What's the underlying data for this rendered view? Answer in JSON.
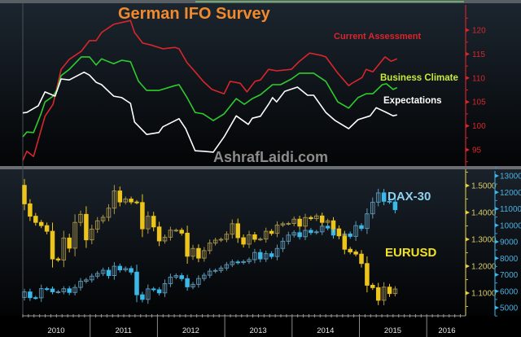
{
  "colors": {
    "title": "#f28a2c",
    "current_assessment": "#d8262c",
    "business_climate": "#2ecc2e",
    "business_climate_label": "#c8ea3c",
    "expectations": "#ffffff",
    "watermark": "#8c8c8c",
    "dax": "#3ab8ea",
    "dax_label": "#8fd0ee",
    "eurusd": "#ecc41c",
    "eurusd_label": "#f2e41a"
  },
  "chart_data": [
    {
      "type": "line",
      "title": "German IFO Survey",
      "watermark": "AshrafLaidi.com",
      "ylim": [
        90,
        125
      ],
      "yticks": [
        95,
        100,
        105,
        110,
        115,
        120
      ],
      "axis_side": "right",
      "series": [
        {
          "name": "Current Assessment",
          "x": [
            2010.0,
            2010.06,
            2010.16,
            2010.33,
            2010.45,
            2010.57,
            2010.69,
            2010.87,
            2010.99,
            2011.09,
            2011.17,
            2011.35,
            2011.6,
            2011.66,
            2011.78,
            2011.9,
            2012.08,
            2012.26,
            2012.32,
            2012.44,
            2012.56,
            2012.68,
            2012.81,
            2012.99,
            2013.08,
            2013.23,
            2013.33,
            2013.45,
            2013.53,
            2013.65,
            2013.77,
            2013.99,
            2014.11,
            2014.26,
            2014.44,
            2014.5,
            2014.68,
            2014.84,
            2014.89,
            2015.04,
            2015.1,
            2015.2,
            2015.38,
            2015.47,
            2015.56
          ],
          "y": [
            92.8,
            94.7,
            93.6,
            102.0,
            104.5,
            111.8,
            113.9,
            115.6,
            117.8,
            117.8,
            119.5,
            121.2,
            122.0,
            119.5,
            117.3,
            116.9,
            116.1,
            116.4,
            116.1,
            113.2,
            111.3,
            109.3,
            107.6,
            106.7,
            109.3,
            108.9,
            107.1,
            109.3,
            109.6,
            111.8,
            111.5,
            111.8,
            113.5,
            115.2,
            114.7,
            114.4,
            111.0,
            108.4,
            108.9,
            110.1,
            111.8,
            111.3,
            114.4,
            113.5,
            114.0
          ]
        },
        {
          "name": "Business Climate",
          "x": [
            2010.0,
            2010.06,
            2010.16,
            2010.27,
            2010.33,
            2010.45,
            2010.51,
            2010.57,
            2010.69,
            2010.87,
            2010.99,
            2011.09,
            2011.17,
            2011.35,
            2011.47,
            2011.6,
            2011.72,
            2011.84,
            2012.02,
            2012.26,
            2012.32,
            2012.44,
            2012.56,
            2012.68,
            2012.83,
            2012.99,
            2013.17,
            2013.29,
            2013.41,
            2013.53,
            2013.71,
            2013.83,
            2013.99,
            2014.11,
            2014.32,
            2014.5,
            2014.68,
            2014.84,
            2014.98,
            2015.1,
            2015.2,
            2015.34,
            2015.4,
            2015.5,
            2015.56
          ],
          "y": [
            97.7,
            98.7,
            98.6,
            102.5,
            105.0,
            106.2,
            107.6,
            110.5,
            111.8,
            114.4,
            114.4,
            112.7,
            114.0,
            113.0,
            113.7,
            113.4,
            109.3,
            107.4,
            107.4,
            108.4,
            108.6,
            105.9,
            102.8,
            102.5,
            101.1,
            102.5,
            105.7,
            104.5,
            105.7,
            106.5,
            108.6,
            108.6,
            109.8,
            111.0,
            111.0,
            109.3,
            105.0,
            103.7,
            105.9,
            106.7,
            106.7,
            108.6,
            108.8,
            107.6,
            108.0
          ]
        },
        {
          "name": "Expectations",
          "x": [
            2010.0,
            2010.06,
            2010.23,
            2010.33,
            2010.48,
            2010.57,
            2010.69,
            2010.91,
            2010.99,
            2011.09,
            2011.17,
            2011.35,
            2011.47,
            2011.6,
            2011.66,
            2011.84,
            2012.02,
            2012.08,
            2012.32,
            2012.42,
            2012.56,
            2012.68,
            2012.83,
            2012.99,
            2013.17,
            2013.35,
            2013.41,
            2013.53,
            2013.65,
            2013.71,
            2013.77,
            2013.89,
            2014.08,
            2014.23,
            2014.32,
            2014.5,
            2014.64,
            2014.84,
            2014.98,
            2015.16,
            2015.25,
            2015.4,
            2015.5,
            2015.56
          ],
          "y": [
            102.7,
            102.8,
            104.2,
            107.1,
            106.2,
            109.8,
            109.6,
            111.2,
            110.6,
            109.1,
            108.6,
            106.2,
            105.9,
            104.7,
            100.8,
            98.2,
            98.6,
            99.8,
            101.5,
            99.4,
            94.8,
            94.7,
            94.5,
            97.7,
            102.1,
            100.3,
            101.6,
            102.0,
            104.5,
            105.9,
            105.0,
            107.2,
            108.1,
            106.4,
            106.4,
            102.8,
            101.1,
            99.4,
            101.3,
            102.1,
            103.8,
            102.8,
            102.1,
            102.3
          ]
        }
      ],
      "legend": [
        "Current Assessment",
        "Business Climate",
        "Expectations"
      ]
    },
    {
      "type": "candlestick",
      "start_month": "2009-12",
      "xticks": [
        "2010",
        "2011",
        "2012",
        "2013",
        "2014",
        "2015",
        "2016"
      ],
      "series": [
        {
          "name": "EURUSD",
          "axis": "inner-right",
          "ylim": [
            1.03,
            1.55
          ],
          "yticks": [
            "1.1000",
            "1.2000",
            "1.3000",
            "1.4000",
            "1.5000"
          ],
          "open_first": 1.501,
          "close": [
            1.432,
            1.386,
            1.363,
            1.351,
            1.33,
            1.227,
            1.223,
            1.305,
            1.267,
            1.363,
            1.393,
            1.298,
            1.338,
            1.369,
            1.382,
            1.416,
            1.48,
            1.439,
            1.45,
            1.439,
            1.437,
            1.339,
            1.386,
            1.346,
            1.294,
            1.308,
            1.334,
            1.334,
            1.323,
            1.237,
            1.266,
            1.23,
            1.258,
            1.286,
            1.297,
            1.3,
            1.319,
            1.358,
            1.306,
            1.282,
            1.317,
            1.3,
            1.301,
            1.33,
            1.322,
            1.353,
            1.358,
            1.359,
            1.375,
            1.349,
            1.381,
            1.377,
            1.387,
            1.363,
            1.369,
            1.339,
            1.313,
            1.263,
            1.253,
            1.245,
            1.21,
            1.129,
            1.12,
            1.073,
            1.122,
            1.098,
            1.115
          ]
        },
        {
          "name": "DAX-30",
          "axis": "outer-right",
          "ylim": [
            4500,
            13500
          ],
          "yticks": [
            "5000",
            "6000",
            "7000",
            "8000",
            "9000",
            "10000",
            "11000",
            "12000",
            "13000"
          ],
          "open_first": 5625,
          "close": [
            5957,
            5608,
            5598,
            6154,
            6136,
            5964,
            5966,
            6148,
            5925,
            6229,
            6601,
            6688,
            6914,
            7077,
            7272,
            6947,
            7514,
            7294,
            7376,
            7159,
            5785,
            5502,
            6141,
            6089,
            5898,
            6459,
            6856,
            6947,
            6761,
            6264,
            6416,
            6772,
            6970,
            7216,
            7260,
            7406,
            7612,
            7776,
            7742,
            7795,
            7914,
            8349,
            7959,
            8276,
            8104,
            8594,
            9033,
            9406,
            9552,
            9306,
            9692,
            9556,
            9603,
            9943,
            9833,
            9407,
            9470,
            9474,
            9327,
            9980,
            9806,
            10694,
            11402,
            11966,
            11454,
            11414,
            10945
          ]
        }
      ]
    }
  ]
}
